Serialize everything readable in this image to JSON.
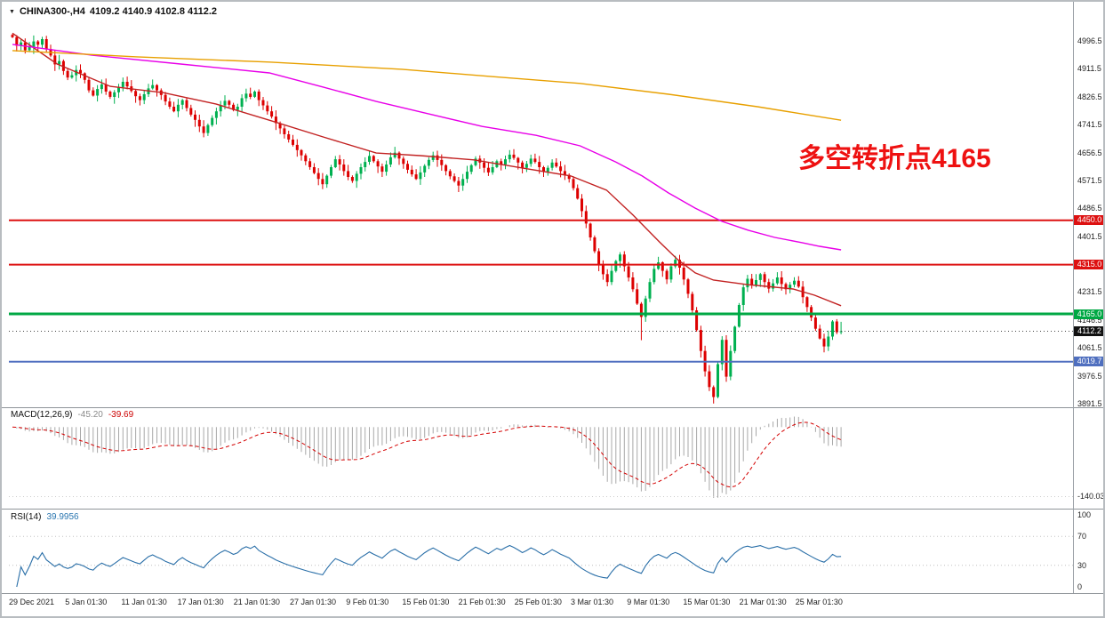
{
  "header": {
    "dropdown_icon": "▼",
    "symbol": "CHINA300-,H4",
    "ohlc": "4109.2 4140.9 4102.8 4112.2"
  },
  "annotation": {
    "text": "多空转折点4165",
    "color": "#ee1111"
  },
  "colors": {
    "up": "#00b050",
    "down": "#dd0000",
    "ma_fast": "#c22222",
    "ma_mid": "#e800e8",
    "ma_slow": "#e8a000",
    "level_red": "#dd1111",
    "level_green": "#00a844",
    "level_blue": "#4f6fbf",
    "macd_hist": "#a8a8a8",
    "macd_signal": "#d40000",
    "rsi_line": "#2a6fa8"
  },
  "price_axis": {
    "ticks": [
      4996.5,
      4911.5,
      4826.5,
      4741.5,
      4656.5,
      4571.5,
      4486.5,
      4401.5,
      4231.5,
      4146.5,
      4061.5,
      3976.5,
      3891.5
    ]
  },
  "levels": [
    {
      "price": 4450.0,
      "label": "4450.0",
      "color_key": "level_red",
      "thickness": 2
    },
    {
      "price": 4315.0,
      "label": "4315.0",
      "color_key": "level_red",
      "thickness": 2
    },
    {
      "price": 4165.0,
      "label": "4165.0",
      "color_key": "level_green",
      "thickness": 3
    },
    {
      "price": 4019.7,
      "label": "4019.7",
      "color_key": "level_blue",
      "thickness": 2
    }
  ],
  "current_price": {
    "value": 4112.2,
    "label": "4112.2",
    "bg": "#111111",
    "fg": "#ffffff"
  },
  "macd_panel": {
    "title": "MACD(12,26,9)",
    "value_main": "-45.20",
    "value_signal": "-39.69",
    "axis_label": "-140.03"
  },
  "rsi_panel": {
    "title": "RSI(14)",
    "value": "39.9956",
    "ticks": [
      "100",
      "70",
      "30",
      "0"
    ],
    "levels": [
      70,
      30
    ]
  },
  "chart_data": {
    "type": "candlestick",
    "symbol": "CHINA300-",
    "timeframe": "H4",
    "ylim": [
      3891.5,
      4996.5
    ],
    "x_labels": [
      "29 Dec 2021",
      "5 Jan 01:30",
      "11 Jan 01:30",
      "17 Jan 01:30",
      "21 Jan 01:30",
      "27 Jan 01:30",
      "9 Feb 01:30",
      "15 Feb 01:30",
      "21 Feb 01:30",
      "25 Feb 01:30",
      "3 Mar 01:30",
      "9 Mar 01:30",
      "15 Mar 01:30",
      "21 Mar 01:30",
      "25 Mar 01:30"
    ],
    "last_bar": {
      "open": 4109.2,
      "high": 4140.9,
      "low": 4102.8,
      "close": 4112.2
    },
    "open_seed": 5015,
    "closes": [
      5008,
      4982,
      4992,
      4968,
      4978,
      4995,
      4985,
      5002,
      4972,
      4952,
      4925,
      4935,
      4905,
      4885,
      4892,
      4908,
      4898,
      4878,
      4846,
      4830,
      4850,
      4864,
      4842,
      4826,
      4840,
      4856,
      4872,
      4858,
      4844,
      4828,
      4816,
      4834,
      4852,
      4862,
      4846,
      4832,
      4812,
      4796,
      4782,
      4802,
      4816,
      4792,
      4772,
      4756,
      4736,
      4716,
      4740,
      4762,
      4782,
      4800,
      4814,
      4802,
      4786,
      4796,
      4822,
      4836,
      4826,
      4842,
      4816,
      4800,
      4782,
      4766,
      4746,
      4730,
      4712,
      4696,
      4680,
      4664,
      4648,
      4630,
      4612,
      4594,
      4576,
      4560,
      4586,
      4612,
      4636,
      4620,
      4600,
      4582,
      4570,
      4592,
      4612,
      4628,
      4646,
      4630,
      4614,
      4598,
      4620,
      4642,
      4656,
      4638,
      4622,
      4604,
      4590,
      4576,
      4596,
      4616,
      4634,
      4648,
      4634,
      4618,
      4600,
      4584,
      4570,
      4556,
      4576,
      4598,
      4618,
      4638,
      4626,
      4610,
      4596,
      4612,
      4630,
      4620,
      4636,
      4650,
      4640,
      4626,
      4610,
      4622,
      4638,
      4628,
      4612,
      4598,
      4610,
      4626,
      4614,
      4600,
      4588,
      4576,
      4548,
      4516,
      4478,
      4440,
      4398,
      4356,
      4316,
      4286,
      4262,
      4296,
      4326,
      4346,
      4310,
      4276,
      4240,
      4196,
      4156,
      4212,
      4262,
      4302,
      4322,
      4296,
      4270,
      4310,
      4330,
      4306,
      4270,
      4226,
      4176,
      4116,
      4052,
      3990,
      3942,
      3912,
      4012,
      4086,
      3974,
      4052,
      4126,
      4192,
      4246,
      4272,
      4252,
      4268,
      4286,
      4262,
      4242,
      4258,
      4276,
      4256,
      4240,
      4254,
      4266,
      4248,
      4216,
      4186,
      4154,
      4120,
      4090,
      4066,
      4096,
      4142,
      4109.2,
      4112.2
    ],
    "wick_overrides": {
      "148": {
        "low": 4085
      },
      "165": {
        "low": 3892
      },
      "168": {
        "low": 3958
      },
      "195": {
        "high": 4140.9,
        "low": 4102.8
      }
    },
    "overlays": [
      {
        "name": "ma-fast-line",
        "color_key": "ma_fast",
        "points": [
          [
            0,
            5020
          ],
          [
            0.054,
            4926
          ],
          [
            0.118,
            4858
          ],
          [
            0.182,
            4839
          ],
          [
            0.246,
            4804
          ],
          [
            0.31,
            4755
          ],
          [
            0.375,
            4704
          ],
          [
            0.439,
            4655
          ],
          [
            0.492,
            4647
          ],
          [
            0.557,
            4634
          ],
          [
            0.621,
            4607
          ],
          [
            0.674,
            4585
          ],
          [
            0.717,
            4542
          ],
          [
            0.749,
            4466
          ],
          [
            0.781,
            4384
          ],
          [
            0.803,
            4330
          ],
          [
            0.824,
            4290
          ],
          [
            0.846,
            4268
          ],
          [
            0.888,
            4254
          ],
          [
            0.91,
            4249
          ],
          [
            0.942,
            4241
          ],
          [
            0.968,
            4222
          ],
          [
            1,
            4190
          ]
        ]
      },
      {
        "name": "ma-mid-line",
        "color_key": "ma_mid",
        "points": [
          [
            0,
            4986
          ],
          [
            0.096,
            4953
          ],
          [
            0.203,
            4926
          ],
          [
            0.31,
            4899
          ],
          [
            0.375,
            4856
          ],
          [
            0.439,
            4812
          ],
          [
            0.503,
            4774
          ],
          [
            0.567,
            4736
          ],
          [
            0.632,
            4709
          ],
          [
            0.685,
            4677
          ],
          [
            0.728,
            4628
          ],
          [
            0.76,
            4585
          ],
          [
            0.792,
            4533
          ],
          [
            0.824,
            4487
          ],
          [
            0.856,
            4447
          ],
          [
            0.888,
            4420
          ],
          [
            0.92,
            4398
          ],
          [
            0.953,
            4382
          ],
          [
            0.974,
            4371
          ],
          [
            1,
            4360
          ]
        ]
      },
      {
        "name": "ma-slow-line",
        "color_key": "ma_slow",
        "points": [
          [
            0,
            4967
          ],
          [
            0.15,
            4948
          ],
          [
            0.31,
            4932
          ],
          [
            0.47,
            4910
          ],
          [
            0.578,
            4888
          ],
          [
            0.685,
            4867
          ],
          [
            0.792,
            4834
          ],
          [
            0.899,
            4796
          ],
          [
            1,
            4755
          ]
        ]
      }
    ],
    "indicators": [
      {
        "name": "MACD",
        "params": "12,26,9",
        "current_main": -45.2,
        "current_signal": -39.69,
        "scale_min_label": -140.03,
        "derived_from": "closes"
      },
      {
        "name": "RSI",
        "params": "14",
        "current": 39.9956,
        "levels": [
          70,
          30
        ],
        "derived_from": "closes"
      }
    ]
  }
}
